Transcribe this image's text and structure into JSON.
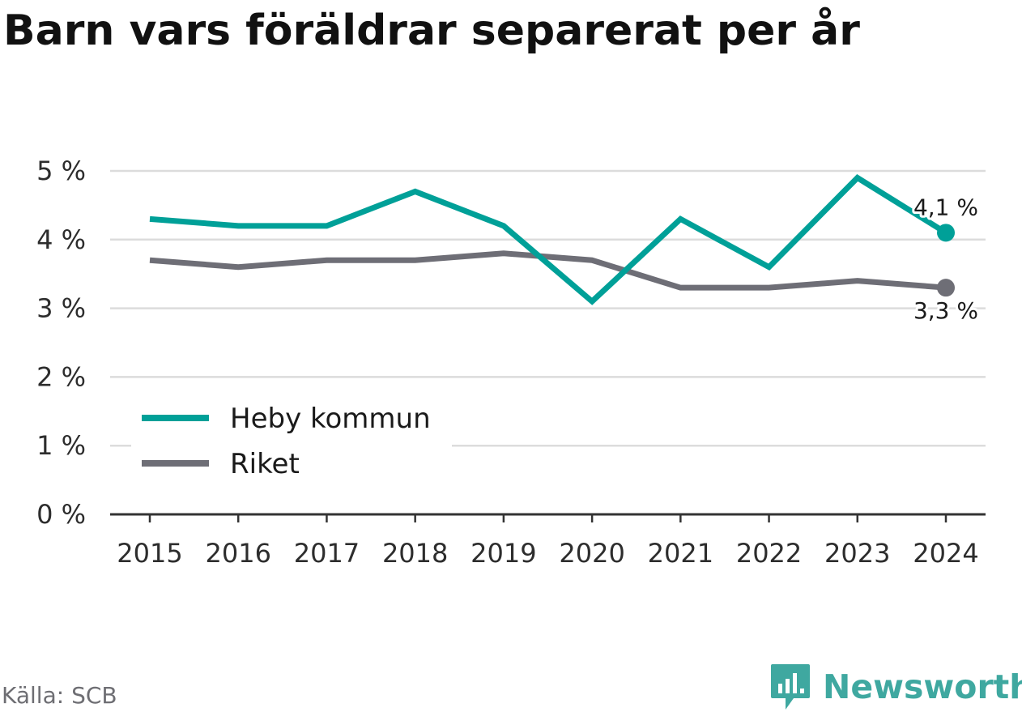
{
  "chart_data": {
    "type": "line",
    "title": "Barn vars föräldrar separerat per år",
    "x": [
      "2015",
      "2016",
      "2017",
      "2018",
      "2019",
      "2020",
      "2021",
      "2022",
      "2023",
      "2024"
    ],
    "y_ticks": [
      "0 %",
      "1 %",
      "2 %",
      "3 %",
      "4 %",
      "5 %"
    ],
    "ylim": [
      0,
      5
    ],
    "grid": true,
    "legend_position": "bottom-left",
    "series": [
      {
        "name": "Heby kommun",
        "color": "#00a098",
        "values": [
          4.3,
          4.2,
          4.2,
          4.7,
          4.2,
          3.1,
          4.3,
          3.6,
          4.9,
          4.1
        ],
        "end_label": "4,1 %"
      },
      {
        "name": "Riket",
        "color": "#6e6e76",
        "values": [
          3.7,
          3.6,
          3.7,
          3.7,
          3.8,
          3.7,
          3.3,
          3.3,
          3.4,
          3.3
        ],
        "end_label": "3,3 %"
      }
    ]
  },
  "footer": {
    "source": "Källa: SCB",
    "brand": "Newsworthy",
    "brand_color": "#3fa8a0"
  },
  "icons": {
    "brand_logo": "newsworthy-logo-icon"
  }
}
